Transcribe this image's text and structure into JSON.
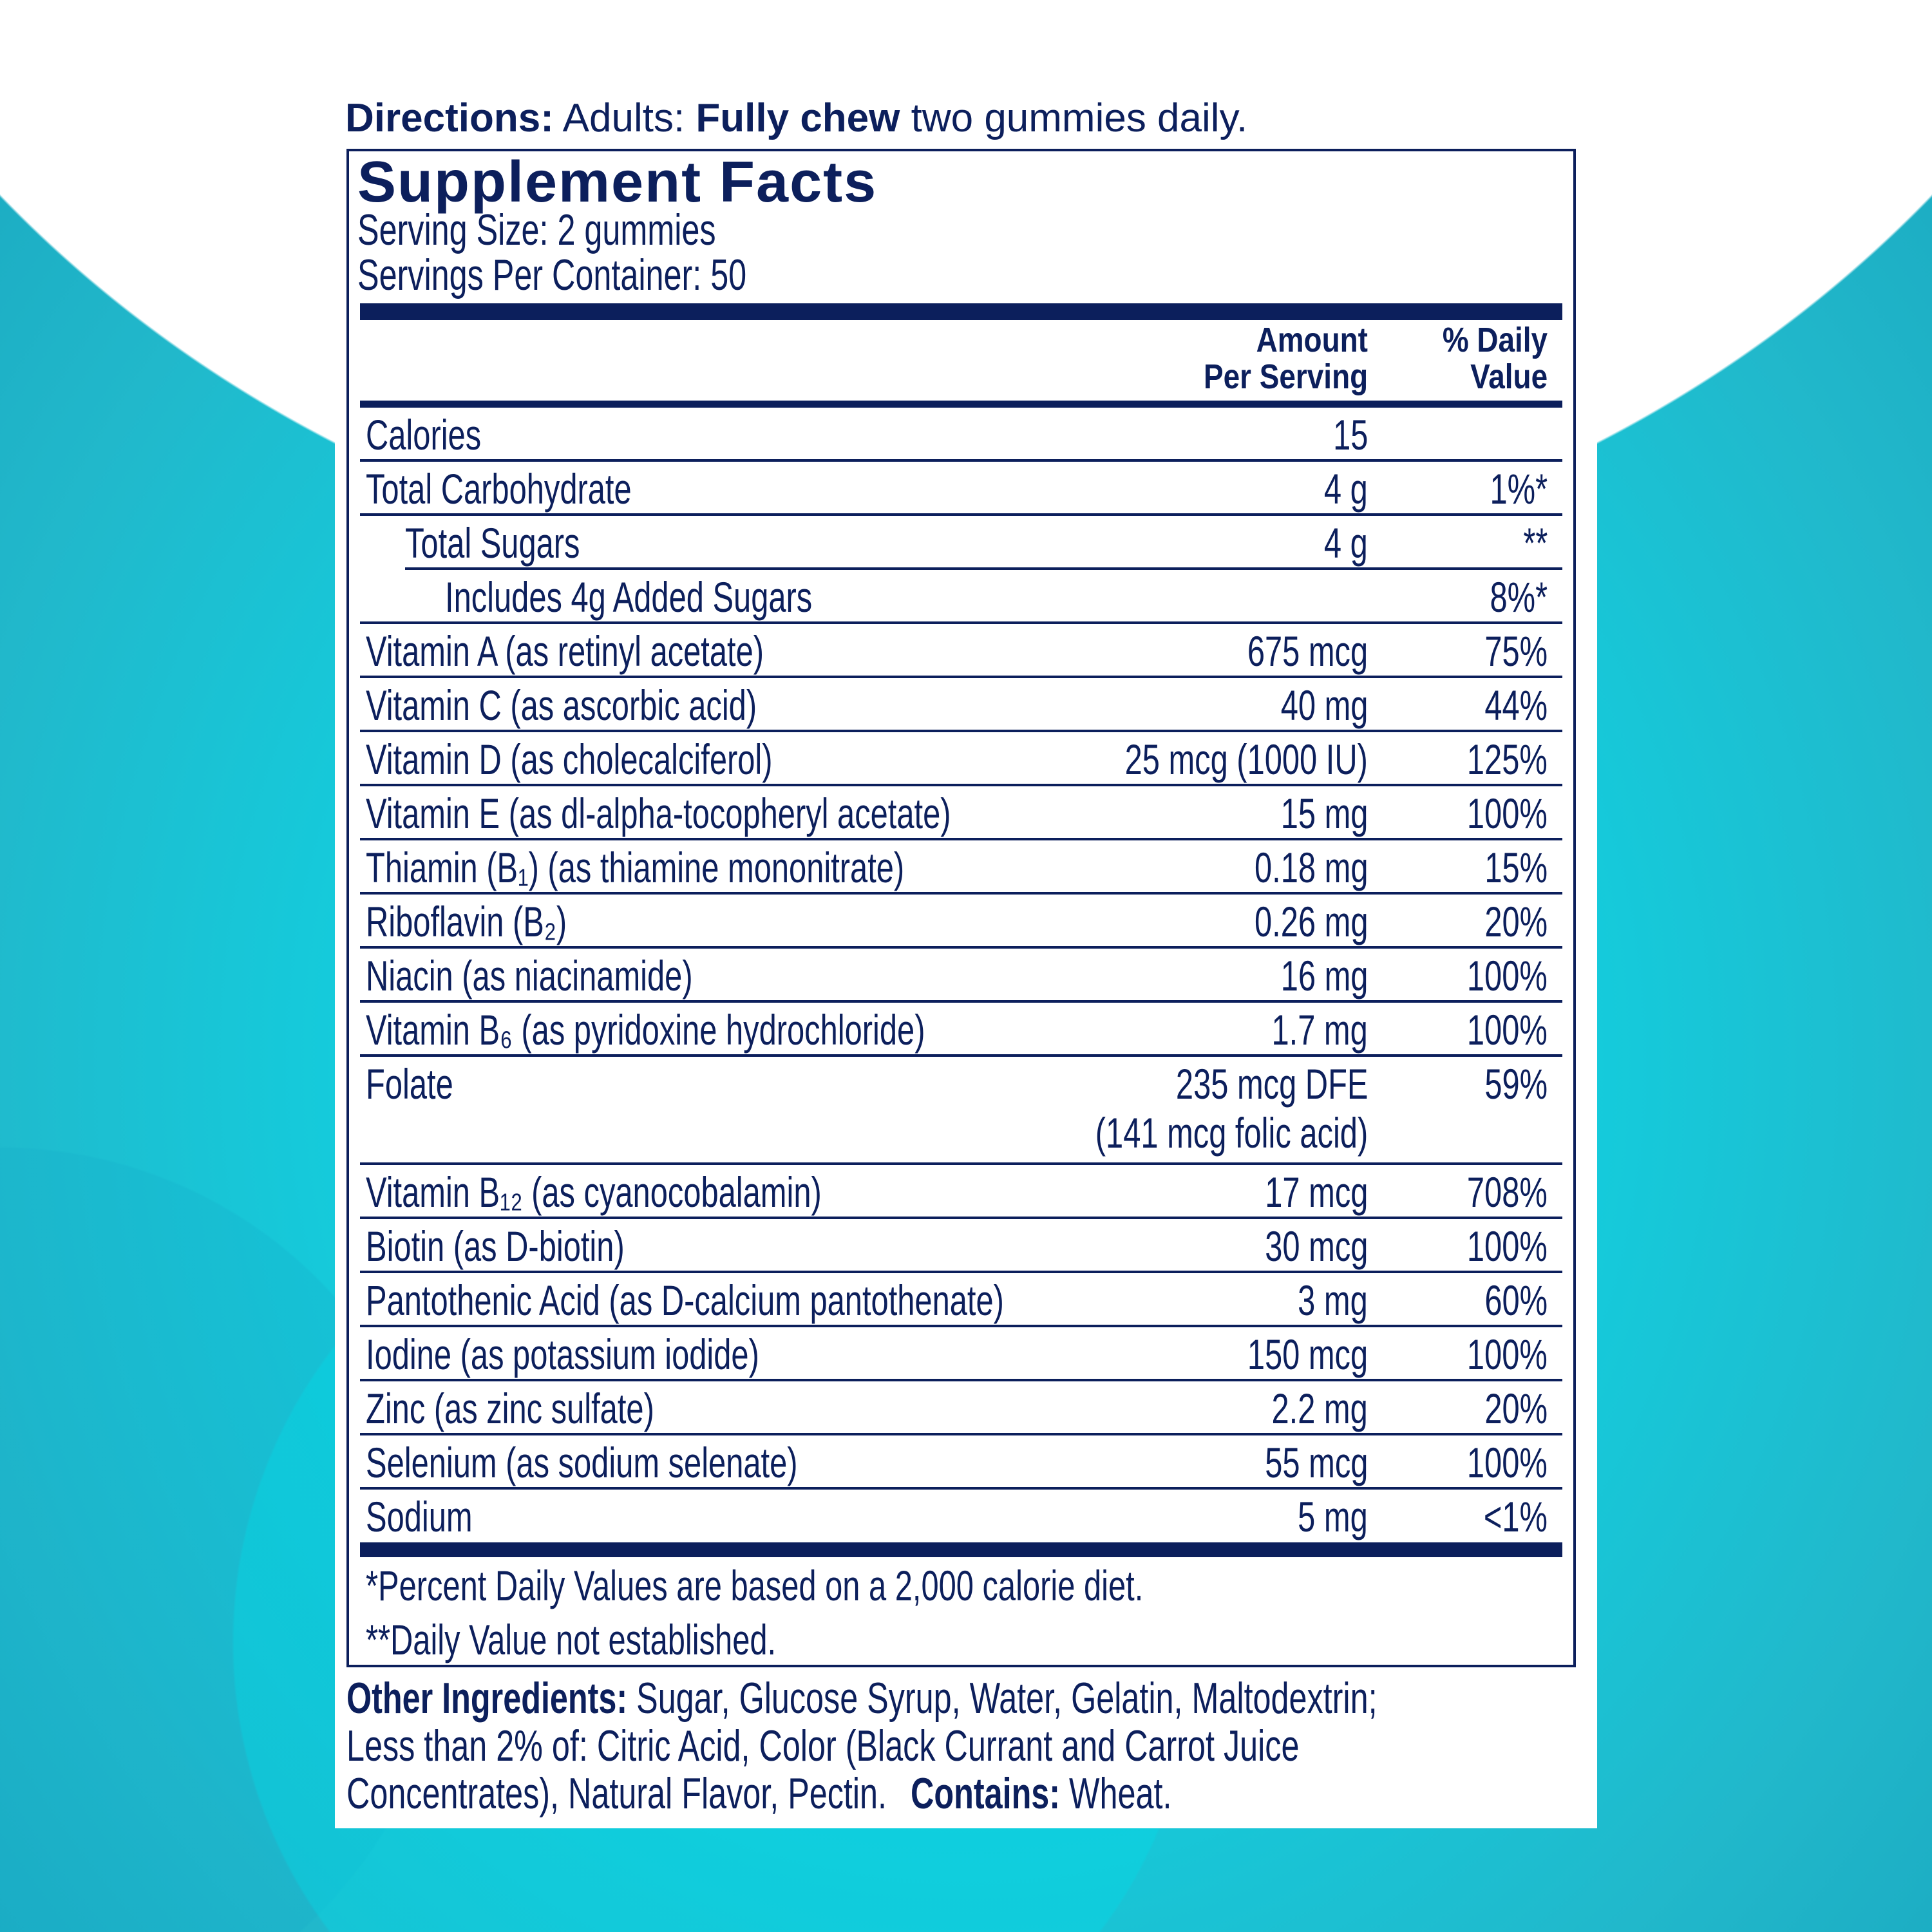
{
  "colors": {
    "navy": "#0c1f5c",
    "teal": "#00dbe8",
    "white": "#ffffff"
  },
  "directions": {
    "label": "Directions:",
    "part1": " Adults: ",
    "bold": "Fully chew",
    "part2": " two gummies daily."
  },
  "facts": {
    "title": "Supplement Facts",
    "serving_size": "Serving Size: 2 gummies",
    "servings_per_container": "Servings Per Container: 50",
    "header": {
      "amount_line1": "Amount",
      "amount_line2": "Per Serving",
      "dv_line1": "% Daily",
      "dv_line2": "Value"
    },
    "rows": [
      {
        "name": "Calories",
        "amount": "15",
        "dv": "",
        "level": 0
      },
      {
        "name": "Total Carbohydrate",
        "amount": "4 g",
        "dv": "1%*",
        "level": 0
      },
      {
        "name": "Total Sugars",
        "amount": "4 g",
        "dv": "**",
        "level": 1
      },
      {
        "name": "Includes 4g Added Sugars",
        "amount": "",
        "dv": "8%*",
        "level": 2
      },
      {
        "name": "Vitamin A (as retinyl acetate)",
        "amount": "675 mcg",
        "dv": "75%",
        "level": 0
      },
      {
        "name": "Vitamin C (as ascorbic acid)",
        "amount": "40 mg",
        "dv": "44%",
        "level": 0
      },
      {
        "name": "Vitamin D (as cholecalciferol)",
        "amount": "25 mcg (1000 IU)",
        "dv": "125%",
        "level": 0
      },
      {
        "name": "Vitamin E (as dl-alpha-tocopheryl acetate)",
        "amount": "15 mg",
        "dv": "100%",
        "level": 0
      },
      {
        "name": "Thiamin (B₁) (as thiamine mononitrate)",
        "amount": "0.18 mg",
        "dv": "15%",
        "level": 0
      },
      {
        "name": "Riboflavin (B₂)",
        "amount": "0.26 mg",
        "dv": "20%",
        "level": 0
      },
      {
        "name": "Niacin (as niacinamide)",
        "amount": "16 mg",
        "dv": "100%",
        "level": 0
      },
      {
        "name": "Vitamin B₆ (as pyridoxine hydrochloride)",
        "amount": "1.7 mg",
        "dv": "100%",
        "level": 0
      },
      {
        "name": "Folate",
        "amount": "235 mcg DFE",
        "amount_line2": "(141 mcg folic acid)",
        "dv": "59%",
        "level": 0
      },
      {
        "name": "Vitamin B₁₂ (as cyanocobalamin)",
        "amount": "17 mcg",
        "dv": "708%",
        "level": 0
      },
      {
        "name": "Biotin (as D-biotin)",
        "amount": "30 mcg",
        "dv": "100%",
        "level": 0
      },
      {
        "name": "Pantothenic Acid (as D-calcium pantothenate)",
        "amount": "3 mg",
        "dv": "60%",
        "level": 0
      },
      {
        "name": "Iodine (as potassium iodide)",
        "amount": "150 mcg",
        "dv": "100%",
        "level": 0
      },
      {
        "name": "Zinc (as zinc sulfate)",
        "amount": "2.2 mg",
        "dv": "20%",
        "level": 0
      },
      {
        "name": "Selenium (as sodium selenate)",
        "amount": "55 mcg",
        "dv": "100%",
        "level": 0
      },
      {
        "name": "Sodium",
        "amount": "5 mg",
        "dv": "<1%",
        "level": 0
      }
    ],
    "footnote1": "*Percent Daily Values are based on a 2,000 calorie diet.",
    "footnote2": "**Daily Value not established."
  },
  "other_ingredients": {
    "label": "Other Ingredients:",
    "text1": " Sugar, Glucose Syrup, Water, Gelatin, Maltodextrin;",
    "text2": "Less than 2% of: Citric Acid, Color (Black Currant and Carrot Juice",
    "text3": "Concentrates), Natural Flavor, Pectin.",
    "contains_label": "Contains:",
    "contains_value": " Wheat."
  }
}
